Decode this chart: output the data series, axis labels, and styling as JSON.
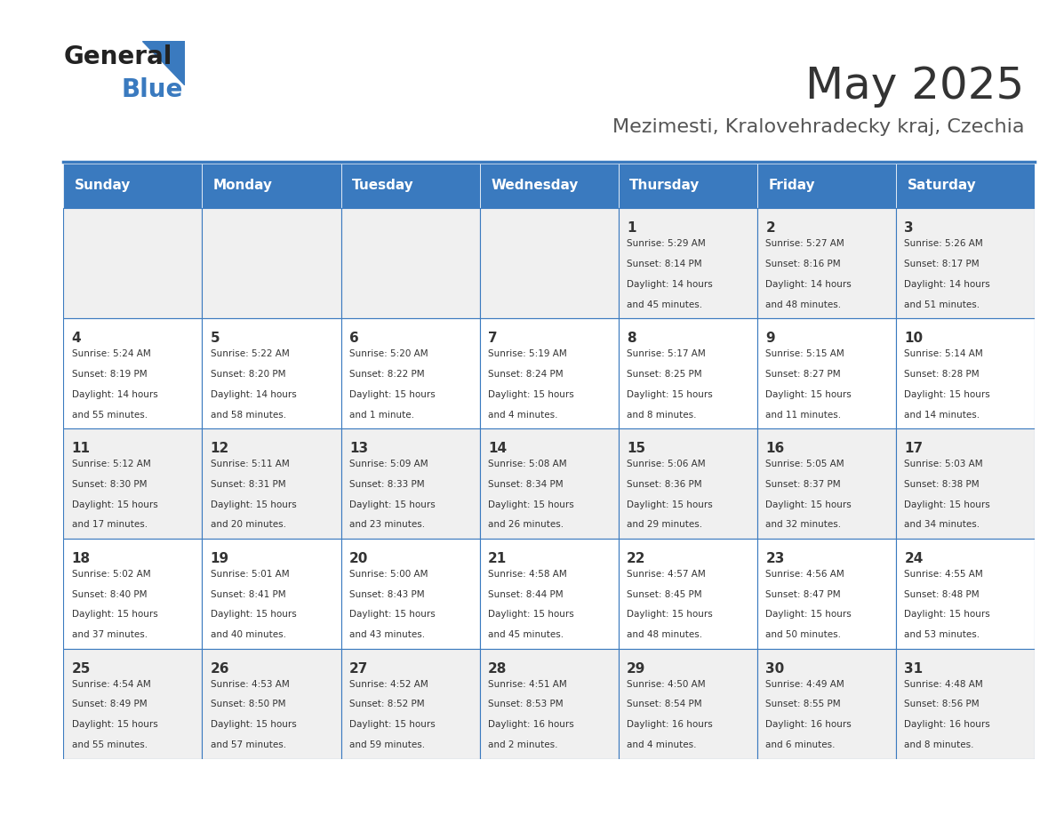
{
  "title": "May 2025",
  "subtitle": "Mezimesti, Kralovehradecky kraj, Czechia",
  "days_of_week": [
    "Sunday",
    "Monday",
    "Tuesday",
    "Wednesday",
    "Thursday",
    "Friday",
    "Saturday"
  ],
  "header_bg": "#3a7abf",
  "header_text": "#ffffff",
  "row_bg_odd": "#f0f0f0",
  "row_bg_even": "#ffffff",
  "cell_text": "#333333",
  "border_color": "#3a7abf",
  "title_color": "#333333",
  "subtitle_color": "#555555",
  "calendar_data": [
    [
      {
        "day": "",
        "info": ""
      },
      {
        "day": "",
        "info": ""
      },
      {
        "day": "",
        "info": ""
      },
      {
        "day": "",
        "info": ""
      },
      {
        "day": "1",
        "info": "Sunrise: 5:29 AM\nSunset: 8:14 PM\nDaylight: 14 hours\nand 45 minutes."
      },
      {
        "day": "2",
        "info": "Sunrise: 5:27 AM\nSunset: 8:16 PM\nDaylight: 14 hours\nand 48 minutes."
      },
      {
        "day": "3",
        "info": "Sunrise: 5:26 AM\nSunset: 8:17 PM\nDaylight: 14 hours\nand 51 minutes."
      }
    ],
    [
      {
        "day": "4",
        "info": "Sunrise: 5:24 AM\nSunset: 8:19 PM\nDaylight: 14 hours\nand 55 minutes."
      },
      {
        "day": "5",
        "info": "Sunrise: 5:22 AM\nSunset: 8:20 PM\nDaylight: 14 hours\nand 58 minutes."
      },
      {
        "day": "6",
        "info": "Sunrise: 5:20 AM\nSunset: 8:22 PM\nDaylight: 15 hours\nand 1 minute."
      },
      {
        "day": "7",
        "info": "Sunrise: 5:19 AM\nSunset: 8:24 PM\nDaylight: 15 hours\nand 4 minutes."
      },
      {
        "day": "8",
        "info": "Sunrise: 5:17 AM\nSunset: 8:25 PM\nDaylight: 15 hours\nand 8 minutes."
      },
      {
        "day": "9",
        "info": "Sunrise: 5:15 AM\nSunset: 8:27 PM\nDaylight: 15 hours\nand 11 minutes."
      },
      {
        "day": "10",
        "info": "Sunrise: 5:14 AM\nSunset: 8:28 PM\nDaylight: 15 hours\nand 14 minutes."
      }
    ],
    [
      {
        "day": "11",
        "info": "Sunrise: 5:12 AM\nSunset: 8:30 PM\nDaylight: 15 hours\nand 17 minutes."
      },
      {
        "day": "12",
        "info": "Sunrise: 5:11 AM\nSunset: 8:31 PM\nDaylight: 15 hours\nand 20 minutes."
      },
      {
        "day": "13",
        "info": "Sunrise: 5:09 AM\nSunset: 8:33 PM\nDaylight: 15 hours\nand 23 minutes."
      },
      {
        "day": "14",
        "info": "Sunrise: 5:08 AM\nSunset: 8:34 PM\nDaylight: 15 hours\nand 26 minutes."
      },
      {
        "day": "15",
        "info": "Sunrise: 5:06 AM\nSunset: 8:36 PM\nDaylight: 15 hours\nand 29 minutes."
      },
      {
        "day": "16",
        "info": "Sunrise: 5:05 AM\nSunset: 8:37 PM\nDaylight: 15 hours\nand 32 minutes."
      },
      {
        "day": "17",
        "info": "Sunrise: 5:03 AM\nSunset: 8:38 PM\nDaylight: 15 hours\nand 34 minutes."
      }
    ],
    [
      {
        "day": "18",
        "info": "Sunrise: 5:02 AM\nSunset: 8:40 PM\nDaylight: 15 hours\nand 37 minutes."
      },
      {
        "day": "19",
        "info": "Sunrise: 5:01 AM\nSunset: 8:41 PM\nDaylight: 15 hours\nand 40 minutes."
      },
      {
        "day": "20",
        "info": "Sunrise: 5:00 AM\nSunset: 8:43 PM\nDaylight: 15 hours\nand 43 minutes."
      },
      {
        "day": "21",
        "info": "Sunrise: 4:58 AM\nSunset: 8:44 PM\nDaylight: 15 hours\nand 45 minutes."
      },
      {
        "day": "22",
        "info": "Sunrise: 4:57 AM\nSunset: 8:45 PM\nDaylight: 15 hours\nand 48 minutes."
      },
      {
        "day": "23",
        "info": "Sunrise: 4:56 AM\nSunset: 8:47 PM\nDaylight: 15 hours\nand 50 minutes."
      },
      {
        "day": "24",
        "info": "Sunrise: 4:55 AM\nSunset: 8:48 PM\nDaylight: 15 hours\nand 53 minutes."
      }
    ],
    [
      {
        "day": "25",
        "info": "Sunrise: 4:54 AM\nSunset: 8:49 PM\nDaylight: 15 hours\nand 55 minutes."
      },
      {
        "day": "26",
        "info": "Sunrise: 4:53 AM\nSunset: 8:50 PM\nDaylight: 15 hours\nand 57 minutes."
      },
      {
        "day": "27",
        "info": "Sunrise: 4:52 AM\nSunset: 8:52 PM\nDaylight: 15 hours\nand 59 minutes."
      },
      {
        "day": "28",
        "info": "Sunrise: 4:51 AM\nSunset: 8:53 PM\nDaylight: 16 hours\nand 2 minutes."
      },
      {
        "day": "29",
        "info": "Sunrise: 4:50 AM\nSunset: 8:54 PM\nDaylight: 16 hours\nand 4 minutes."
      },
      {
        "day": "30",
        "info": "Sunrise: 4:49 AM\nSunset: 8:55 PM\nDaylight: 16 hours\nand 6 minutes."
      },
      {
        "day": "31",
        "info": "Sunrise: 4:48 AM\nSunset: 8:56 PM\nDaylight: 16 hours\nand 8 minutes."
      }
    ]
  ]
}
